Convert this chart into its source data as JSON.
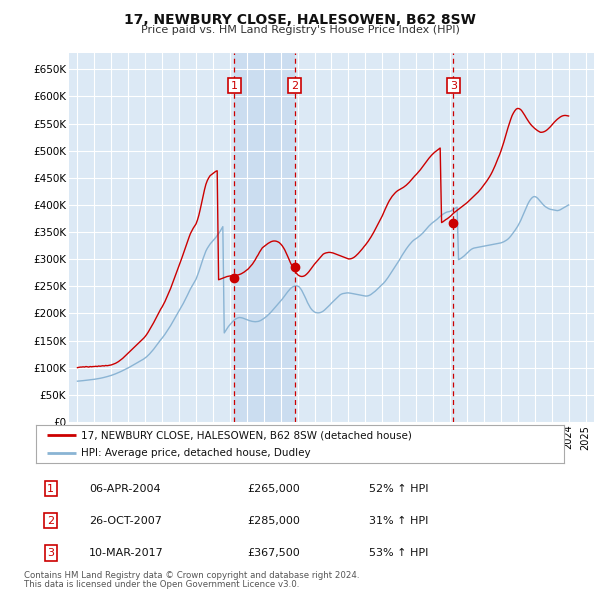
{
  "title": "17, NEWBURY CLOSE, HALESOWEN, B62 8SW",
  "subtitle": "Price paid vs. HM Land Registry's House Price Index (HPI)",
  "footnote1": "Contains HM Land Registry data © Crown copyright and database right 2024.",
  "footnote2": "This data is licensed under the Open Government Licence v3.0.",
  "legend_line1": "17, NEWBURY CLOSE, HALESOWEN, B62 8SW (detached house)",
  "legend_line2": "HPI: Average price, detached house, Dudley",
  "sale_markers": [
    {
      "label": "1",
      "date": "06-APR-2004",
      "price": 265000,
      "pct": "52%",
      "dir": "↑",
      "x_year": 2004.27
    },
    {
      "label": "2",
      "date": "26-OCT-2007",
      "price": 285000,
      "pct": "31%",
      "dir": "↑",
      "x_year": 2007.82
    },
    {
      "label": "3",
      "date": "10-MAR-2017",
      "price": 367500,
      "pct": "53%",
      "dir": "↑",
      "x_year": 2017.19
    }
  ],
  "ylim": [
    0,
    680000
  ],
  "xlim": [
    1994.5,
    2025.5
  ],
  "yticks": [
    0,
    50000,
    100000,
    150000,
    200000,
    250000,
    300000,
    350000,
    400000,
    450000,
    500000,
    550000,
    600000,
    650000
  ],
  "ytick_labels": [
    "£0",
    "£50K",
    "£100K",
    "£150K",
    "£200K",
    "£250K",
    "£300K",
    "£350K",
    "£400K",
    "£450K",
    "£500K",
    "£550K",
    "£600K",
    "£650K"
  ],
  "xticks": [
    1995,
    1996,
    1997,
    1998,
    1999,
    2000,
    2001,
    2002,
    2003,
    2004,
    2005,
    2006,
    2007,
    2008,
    2009,
    2010,
    2011,
    2012,
    2013,
    2014,
    2015,
    2016,
    2017,
    2018,
    2019,
    2020,
    2021,
    2022,
    2023,
    2024,
    2025
  ],
  "background_color": "#dce9f5",
  "grid_color": "#ffffff",
  "red_line_color": "#cc0000",
  "blue_line_color": "#8ab4d4",
  "dashed_line_color": "#cc0000",
  "marker_box_color": "#cc0000",
  "shade_color": "#c5d8ee",
  "hpi_years": [
    1995.0,
    1995.083,
    1995.167,
    1995.25,
    1995.333,
    1995.417,
    1995.5,
    1995.583,
    1995.667,
    1995.75,
    1995.833,
    1995.917,
    1996.0,
    1996.083,
    1996.167,
    1996.25,
    1996.333,
    1996.417,
    1996.5,
    1996.583,
    1996.667,
    1996.75,
    1996.833,
    1996.917,
    1997.0,
    1997.083,
    1997.167,
    1997.25,
    1997.333,
    1997.417,
    1997.5,
    1997.583,
    1997.667,
    1997.75,
    1997.833,
    1997.917,
    1998.0,
    1998.083,
    1998.167,
    1998.25,
    1998.333,
    1998.417,
    1998.5,
    1998.583,
    1998.667,
    1998.75,
    1998.833,
    1998.917,
    1999.0,
    1999.083,
    1999.167,
    1999.25,
    1999.333,
    1999.417,
    1999.5,
    1999.583,
    1999.667,
    1999.75,
    1999.833,
    1999.917,
    2000.0,
    2000.083,
    2000.167,
    2000.25,
    2000.333,
    2000.417,
    2000.5,
    2000.583,
    2000.667,
    2000.75,
    2000.833,
    2000.917,
    2001.0,
    2001.083,
    2001.167,
    2001.25,
    2001.333,
    2001.417,
    2001.5,
    2001.583,
    2001.667,
    2001.75,
    2001.833,
    2001.917,
    2002.0,
    2002.083,
    2002.167,
    2002.25,
    2002.333,
    2002.417,
    2002.5,
    2002.583,
    2002.667,
    2002.75,
    2002.833,
    2002.917,
    2003.0,
    2003.083,
    2003.167,
    2003.25,
    2003.333,
    2003.417,
    2003.5,
    2003.583,
    2003.667,
    2003.75,
    2003.833,
    2003.917,
    2004.0,
    2004.083,
    2004.167,
    2004.25,
    2004.333,
    2004.417,
    2004.5,
    2004.583,
    2004.667,
    2004.75,
    2004.833,
    2004.917,
    2005.0,
    2005.083,
    2005.167,
    2005.25,
    2005.333,
    2005.417,
    2005.5,
    2005.583,
    2005.667,
    2005.75,
    2005.833,
    2005.917,
    2006.0,
    2006.083,
    2006.167,
    2006.25,
    2006.333,
    2006.417,
    2006.5,
    2006.583,
    2006.667,
    2006.75,
    2006.833,
    2006.917,
    2007.0,
    2007.083,
    2007.167,
    2007.25,
    2007.333,
    2007.417,
    2007.5,
    2007.583,
    2007.667,
    2007.75,
    2007.833,
    2007.917,
    2008.0,
    2008.083,
    2008.167,
    2008.25,
    2008.333,
    2008.417,
    2008.5,
    2008.583,
    2008.667,
    2008.75,
    2008.833,
    2008.917,
    2009.0,
    2009.083,
    2009.167,
    2009.25,
    2009.333,
    2009.417,
    2009.5,
    2009.583,
    2009.667,
    2009.75,
    2009.833,
    2009.917,
    2010.0,
    2010.083,
    2010.167,
    2010.25,
    2010.333,
    2010.417,
    2010.5,
    2010.583,
    2010.667,
    2010.75,
    2010.833,
    2010.917,
    2011.0,
    2011.083,
    2011.167,
    2011.25,
    2011.333,
    2011.417,
    2011.5,
    2011.583,
    2011.667,
    2011.75,
    2011.833,
    2011.917,
    2012.0,
    2012.083,
    2012.167,
    2012.25,
    2012.333,
    2012.417,
    2012.5,
    2012.583,
    2012.667,
    2012.75,
    2012.833,
    2012.917,
    2013.0,
    2013.083,
    2013.167,
    2013.25,
    2013.333,
    2013.417,
    2013.5,
    2013.583,
    2013.667,
    2013.75,
    2013.833,
    2013.917,
    2014.0,
    2014.083,
    2014.167,
    2014.25,
    2014.333,
    2014.417,
    2014.5,
    2014.583,
    2014.667,
    2014.75,
    2014.833,
    2014.917,
    2015.0,
    2015.083,
    2015.167,
    2015.25,
    2015.333,
    2015.417,
    2015.5,
    2015.583,
    2015.667,
    2015.75,
    2015.833,
    2015.917,
    2016.0,
    2016.083,
    2016.167,
    2016.25,
    2016.333,
    2016.417,
    2016.5,
    2016.583,
    2016.667,
    2016.75,
    2016.833,
    2016.917,
    2017.0,
    2017.083,
    2017.167,
    2017.25,
    2017.333,
    2017.417,
    2017.5,
    2017.583,
    2017.667,
    2017.75,
    2017.833,
    2017.917,
    2018.0,
    2018.083,
    2018.167,
    2018.25,
    2018.333,
    2018.417,
    2018.5,
    2018.583,
    2018.667,
    2018.75,
    2018.833,
    2018.917,
    2019.0,
    2019.083,
    2019.167,
    2019.25,
    2019.333,
    2019.417,
    2019.5,
    2019.583,
    2019.667,
    2019.75,
    2019.833,
    2019.917,
    2020.0,
    2020.083,
    2020.167,
    2020.25,
    2020.333,
    2020.417,
    2020.5,
    2020.583,
    2020.667,
    2020.75,
    2020.833,
    2020.917,
    2021.0,
    2021.083,
    2021.167,
    2021.25,
    2021.333,
    2021.417,
    2021.5,
    2021.583,
    2021.667,
    2021.75,
    2021.833,
    2021.917,
    2022.0,
    2022.083,
    2022.167,
    2022.25,
    2022.333,
    2022.417,
    2022.5,
    2022.583,
    2022.667,
    2022.75,
    2022.833,
    2022.917,
    2023.0,
    2023.083,
    2023.167,
    2023.25,
    2023.333,
    2023.417,
    2023.5,
    2023.583,
    2023.667,
    2023.75,
    2023.833,
    2023.917,
    2024.0,
    2024.083,
    2024.167,
    2024.25,
    2024.333,
    2024.417,
    2024.5
  ],
  "hpi_vals": [
    75000,
    75200,
    75500,
    75800,
    76000,
    76300,
    76600,
    76900,
    77200,
    77500,
    77800,
    78100,
    78500,
    78900,
    79300,
    79800,
    80300,
    80800,
    81400,
    82000,
    82700,
    83400,
    84100,
    84900,
    85700,
    86600,
    87600,
    88600,
    89700,
    90800,
    91900,
    93100,
    94400,
    95700,
    97000,
    98300,
    99600,
    101000,
    102500,
    104000,
    105500,
    107000,
    108500,
    110000,
    111500,
    113000,
    114500,
    116000,
    118000,
    120000,
    122500,
    125000,
    128000,
    131000,
    134000,
    137500,
    141000,
    144500,
    148000,
    151500,
    154500,
    158000,
    161500,
    165500,
    169500,
    173500,
    177500,
    182000,
    186500,
    191000,
    195500,
    200000,
    204500,
    209000,
    213500,
    218500,
    223500,
    228500,
    234000,
    239500,
    245000,
    249500,
    254000,
    258500,
    263000,
    270000,
    277000,
    285000,
    293000,
    301000,
    308000,
    315000,
    320000,
    324000,
    328000,
    331000,
    334000,
    337000,
    340000,
    343500,
    347000,
    351000,
    355500,
    360000,
    164000,
    168000,
    172000,
    176000,
    179000,
    182000,
    185000,
    187500,
    189500,
    191000,
    192000,
    192500,
    192000,
    191500,
    190500,
    189500,
    188500,
    187500,
    186500,
    185800,
    185200,
    184800,
    184600,
    184800,
    185200,
    186000,
    187200,
    188800,
    190500,
    192500,
    194500,
    197000,
    199500,
    202000,
    205000,
    208000,
    211000,
    214000,
    217000,
    220000,
    223000,
    226000,
    229500,
    233000,
    236500,
    240000,
    243000,
    246000,
    248000,
    249500,
    250500,
    251000,
    250500,
    249000,
    246000,
    242000,
    237000,
    231500,
    226000,
    220000,
    215000,
    210500,
    207000,
    204500,
    202500,
    201500,
    201000,
    201000,
    201500,
    202500,
    204000,
    206000,
    208500,
    211000,
    213500,
    216000,
    219000,
    221500,
    224000,
    226500,
    229000,
    231500,
    234000,
    235500,
    236500,
    237000,
    237500,
    237800,
    237800,
    237500,
    237000,
    236500,
    236000,
    235500,
    235000,
    234500,
    234000,
    233500,
    233000,
    232500,
    232000,
    232000,
    232500,
    233500,
    235000,
    237000,
    239000,
    241000,
    243500,
    246000,
    248500,
    251000,
    253500,
    256000,
    259000,
    262500,
    266000,
    270000,
    274000,
    278000,
    282000,
    286000,
    290000,
    294000,
    298000,
    302500,
    307000,
    311000,
    315000,
    319000,
    322500,
    326000,
    329000,
    332000,
    334500,
    336500,
    338000,
    340000,
    342000,
    344000,
    346500,
    349000,
    352000,
    355000,
    358000,
    361000,
    363500,
    366000,
    368000,
    370000,
    372000,
    374000,
    376500,
    379000,
    381000,
    383000,
    384500,
    386000,
    387000,
    387500,
    388000,
    389500,
    391000,
    393000,
    394500,
    396000,
    299000,
    300500,
    302000,
    304000,
    306000,
    308500,
    311000,
    313500,
    316000,
    318000,
    319500,
    320500,
    321000,
    321500,
    322000,
    322500,
    323000,
    323500,
    324000,
    324500,
    325000,
    325500,
    326000,
    326500,
    327000,
    327500,
    328000,
    328500,
    329000,
    329500,
    330000,
    331000,
    332000,
    333500,
    335000,
    337000,
    339500,
    342500,
    346000,
    349500,
    353000,
    357000,
    361000,
    366000,
    371000,
    377000,
    383000,
    389000,
    395000,
    401000,
    406000,
    410000,
    413000,
    415000,
    415500,
    414500,
    412500,
    409500,
    406500,
    403500,
    400500,
    398000,
    396000,
    394500,
    393000,
    392000,
    391500,
    391000,
    390500,
    390000,
    389500,
    390000,
    391000,
    392500,
    394000,
    395500,
    397000,
    398500,
    400000,
    401000,
    402000,
    403000,
    403500,
    404000,
    404500,
    405000,
    405500,
    406000,
    406000,
    406000,
    406000
  ],
  "price_vals": [
    100000,
    100500,
    101000,
    101000,
    101500,
    101000,
    102000,
    101500,
    101000,
    102000,
    101500,
    102000,
    102000,
    102500,
    102000,
    103000,
    102500,
    103000,
    103500,
    103000,
    104000,
    103500,
    104000,
    104500,
    105000,
    106000,
    107000,
    108000,
    109500,
    111000,
    113000,
    115000,
    117000,
    119500,
    122000,
    124500,
    127000,
    129500,
    132000,
    134500,
    137000,
    139500,
    142000,
    144500,
    147000,
    149500,
    152000,
    154500,
    157500,
    161000,
    165000,
    169500,
    174000,
    178500,
    183000,
    188000,
    193000,
    198000,
    203000,
    208000,
    212000,
    217000,
    222000,
    228000,
    234000,
    240000,
    246000,
    253000,
    260000,
    267000,
    274000,
    281000,
    288000,
    295000,
    302500,
    310000,
    317500,
    325000,
    333000,
    340000,
    347000,
    352000,
    357000,
    361000,
    365000,
    372000,
    381000,
    392000,
    404000,
    416000,
    428000,
    438000,
    445000,
    450000,
    454000,
    456000,
    458000,
    460000,
    462000,
    463000,
    262000,
    263000,
    264000,
    265000,
    266000,
    267000,
    268000,
    268500,
    269000,
    269500,
    270000,
    270000,
    270000,
    270500,
    271000,
    272000,
    273000,
    274500,
    276000,
    278000,
    280000,
    282000,
    285000,
    288000,
    291000,
    295000,
    299000,
    304000,
    308000,
    313000,
    317000,
    321000,
    323000,
    325000,
    327000,
    329000,
    330500,
    332000,
    333000,
    333500,
    333500,
    333000,
    332000,
    330500,
    328000,
    325000,
    321000,
    316500,
    311000,
    305000,
    299000,
    293000,
    287500,
    282500,
    278000,
    274500,
    271500,
    269500,
    268500,
    268000,
    268500,
    269500,
    271500,
    274000,
    277000,
    280500,
    284000,
    287500,
    291000,
    294000,
    297000,
    300000,
    303000,
    306000,
    309000,
    310500,
    311500,
    312000,
    312500,
    312500,
    312000,
    311500,
    310500,
    309500,
    308500,
    307500,
    306500,
    305500,
    304500,
    303500,
    302500,
    301500,
    300500,
    300500,
    301000,
    302000,
    303500,
    305500,
    308000,
    310500,
    313500,
    316500,
    319500,
    323000,
    326000,
    329500,
    333000,
    337000,
    341000,
    345500,
    350000,
    355000,
    360000,
    365000,
    370000,
    375000,
    380000,
    386000,
    392000,
    397500,
    403000,
    408000,
    412000,
    416000,
    419000,
    422000,
    424500,
    426500,
    428000,
    429500,
    431000,
    432500,
    434500,
    436500,
    439000,
    441500,
    444500,
    447500,
    450500,
    453500,
    456000,
    459000,
    462000,
    465000,
    468500,
    472000,
    475500,
    479000,
    482500,
    486000,
    489000,
    492000,
    494500,
    497000,
    499000,
    501000,
    503000,
    505000,
    367500,
    369000,
    371000,
    373000,
    374500,
    376500,
    378500,
    381000,
    383500,
    386000,
    388000,
    390000,
    392000,
    394000,
    396000,
    398000,
    400000,
    402000,
    404000,
    406500,
    409000,
    411500,
    414000,
    416500,
    419000,
    421500,
    424000,
    427000,
    430000,
    433500,
    437000,
    440500,
    444000,
    448000,
    452000,
    456500,
    461500,
    467000,
    473000,
    479500,
    486000,
    492000,
    499000,
    507000,
    515000,
    524000,
    533000,
    542000,
    550000,
    558000,
    565000,
    570000,
    574000,
    577000,
    578000,
    577500,
    576000,
    573000,
    569000,
    565000,
    560500,
    556500,
    552500,
    549000,
    546000,
    543500,
    541000,
    539000,
    537000,
    535500,
    534000,
    534000,
    534500,
    535500,
    537000,
    539000,
    541500,
    544000,
    547000,
    550000,
    553000,
    555500,
    558000,
    560000,
    562000,
    563500,
    564500,
    565000,
    565000,
    564500,
    564000
  ]
}
